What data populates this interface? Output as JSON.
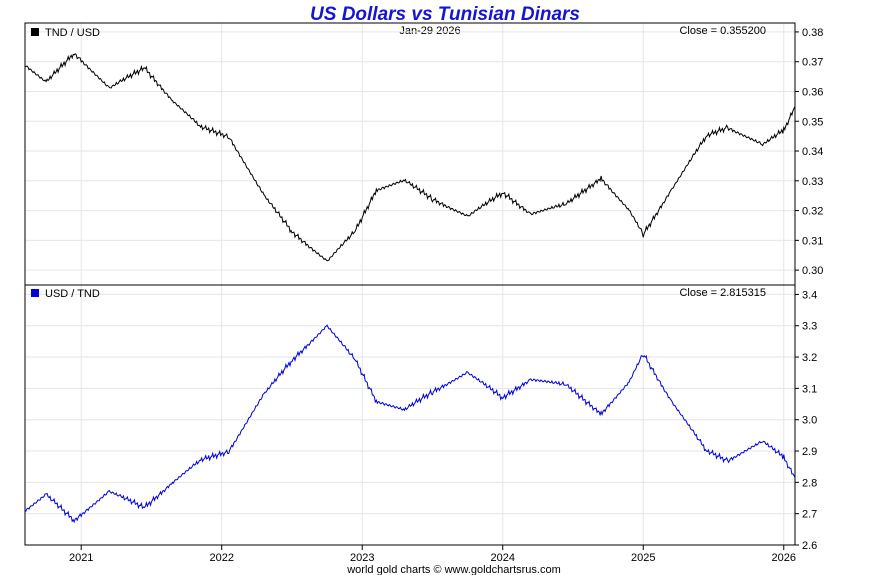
{
  "chart_title": "US Dollars vs Tunisian Dinars",
  "footer": "world gold charts © www.goldchartsrus.com",
  "date_label": "Jan-29  2026",
  "x_axis": {
    "ticks": [
      "2021",
      "2022",
      "2023",
      "2024",
      "2025",
      "2026"
    ],
    "range": [
      2020.6,
      2026.08
    ]
  },
  "chart_data": [
    {
      "type": "line",
      "legend": "TND / USD",
      "close_text": "Close = 0.355200",
      "color": "#000000",
      "ylim": [
        0.295,
        0.383
      ],
      "yticks": [
        "0.38",
        "0.37",
        "0.36",
        "0.35",
        "0.34",
        "0.33",
        "0.32",
        "0.31",
        "0.30"
      ],
      "x": [
        2020.6,
        2020.75,
        2020.95,
        2021.2,
        2021.45,
        2021.65,
        2021.85,
        2022.05,
        2022.3,
        2022.5,
        2022.75,
        2022.95,
        2023.1,
        2023.3,
        2023.5,
        2023.75,
        2024.0,
        2024.2,
        2024.45,
        2024.7,
        2024.9,
        2025.0,
        2025.2,
        2025.45,
        2025.6,
        2025.85,
        2026.0,
        2026.08
      ],
      "y": [
        0.369,
        0.363,
        0.373,
        0.361,
        0.368,
        0.357,
        0.348,
        0.345,
        0.325,
        0.313,
        0.303,
        0.313,
        0.327,
        0.33,
        0.324,
        0.318,
        0.326,
        0.319,
        0.322,
        0.331,
        0.32,
        0.312,
        0.327,
        0.345,
        0.348,
        0.342,
        0.347,
        0.355
      ]
    },
    {
      "type": "line",
      "legend": "USD / TND",
      "close_text": "Close = 2.815315",
      "color": "#0000e0",
      "ylim": [
        2.6,
        3.43
      ],
      "yticks": [
        "3.4",
        "3.3",
        "3.2",
        "3.1",
        "3.0",
        "2.9",
        "2.8",
        "2.7",
        "2.6"
      ],
      "x": [
        2020.6,
        2020.75,
        2020.95,
        2021.2,
        2021.45,
        2021.65,
        2021.85,
        2022.05,
        2022.3,
        2022.5,
        2022.75,
        2022.95,
        2023.1,
        2023.3,
        2023.5,
        2023.75,
        2024.0,
        2024.2,
        2024.45,
        2024.7,
        2024.9,
        2025.0,
        2025.2,
        2025.45,
        2025.6,
        2025.85,
        2026.0,
        2026.08
      ],
      "y": [
        2.71,
        2.76,
        2.68,
        2.77,
        2.72,
        2.8,
        2.87,
        2.9,
        3.08,
        3.19,
        3.3,
        3.19,
        3.06,
        3.03,
        3.09,
        3.15,
        3.07,
        3.13,
        3.11,
        3.02,
        3.12,
        3.21,
        3.06,
        2.9,
        2.87,
        2.93,
        2.88,
        2.815
      ]
    }
  ]
}
